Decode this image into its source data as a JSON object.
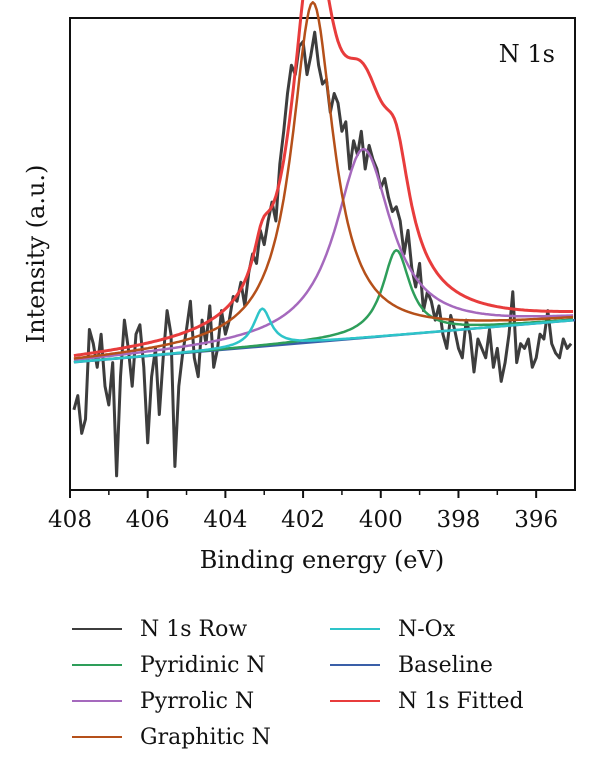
{
  "chart_data": {
    "type": "line",
    "annotation": "N 1s",
    "xlabel": "Binding energy (eV)",
    "ylabel": "Intensity (a.u.)",
    "xlim": [
      408,
      395
    ],
    "x_reversed": true,
    "ylim": [
      0,
      1
    ],
    "y_ticks_shown": false,
    "x_ticks": [
      {
        "value": 408,
        "label": "408"
      },
      {
        "value": 406,
        "label": "406"
      },
      {
        "value": 404,
        "label": "404"
      },
      {
        "value": 402,
        "label": "402"
      },
      {
        "value": 400,
        "label": "400"
      },
      {
        "value": 398,
        "label": "398"
      },
      {
        "value": 396,
        "label": "396"
      }
    ],
    "grid": false,
    "legend_placement": "below",
    "series": [
      {
        "name": "N 1s Row",
        "color": "#3d3d3d",
        "kind": "raw",
        "x": [
          407.9,
          407.8,
          407.7,
          407.6,
          407.5,
          407.4,
          407.3,
          407.2,
          407.1,
          407.0,
          406.9,
          406.8,
          406.7,
          406.6,
          406.5,
          406.4,
          406.3,
          406.2,
          406.1,
          406.0,
          405.9,
          405.8,
          405.7,
          405.6,
          405.5,
          405.4,
          405.3,
          405.2,
          405.1,
          405.0,
          404.9,
          404.8,
          404.7,
          404.6,
          404.5,
          404.4,
          404.3,
          404.2,
          404.1,
          404.0,
          403.9,
          403.8,
          403.7,
          403.6,
          403.5,
          403.4,
          403.3,
          403.2,
          403.1,
          403.0,
          402.9,
          402.8,
          402.7,
          402.6,
          402.5,
          402.4,
          402.3,
          402.2,
          402.1,
          402.0,
          401.9,
          401.8,
          401.7,
          401.6,
          401.5,
          401.4,
          401.3,
          401.2,
          401.1,
          401.0,
          400.9,
          400.8,
          400.7,
          400.6,
          400.5,
          400.4,
          400.3,
          400.2,
          400.1,
          400.0,
          399.9,
          399.8,
          399.7,
          399.6,
          399.5,
          399.4,
          399.3,
          399.2,
          399.1,
          399.0,
          398.9,
          398.8,
          398.7,
          398.6,
          398.5,
          398.4,
          398.3,
          398.2,
          398.1,
          398.0,
          397.9,
          397.8,
          397.7,
          397.6,
          397.5,
          397.4,
          397.3,
          397.2,
          397.1,
          397.0,
          396.9,
          396.8,
          396.7,
          396.6,
          396.5,
          396.4,
          396.3,
          396.2,
          396.1,
          396.0,
          395.9,
          395.8,
          395.7,
          395.6,
          395.5,
          395.4,
          395.3,
          395.2,
          395.1
        ],
        "y": [
          0.17,
          0.2,
          0.12,
          0.15,
          0.34,
          0.31,
          0.26,
          0.33,
          0.22,
          0.18,
          0.27,
          0.03,
          0.24,
          0.36,
          0.3,
          0.22,
          0.33,
          0.35,
          0.26,
          0.1,
          0.24,
          0.3,
          0.16,
          0.28,
          0.38,
          0.33,
          0.05,
          0.22,
          0.29,
          0.34,
          0.4,
          0.28,
          0.24,
          0.36,
          0.31,
          0.39,
          0.26,
          0.3,
          0.38,
          0.33,
          0.36,
          0.41,
          0.4,
          0.44,
          0.39,
          0.46,
          0.5,
          0.48,
          0.55,
          0.52,
          0.57,
          0.61,
          0.57,
          0.69,
          0.76,
          0.84,
          0.9,
          0.88,
          0.94,
          0.95,
          0.88,
          0.92,
          0.97,
          0.9,
          0.86,
          0.87,
          0.8,
          0.84,
          0.82,
          0.76,
          0.78,
          0.68,
          0.74,
          0.71,
          0.76,
          0.68,
          0.73,
          0.7,
          0.68,
          0.64,
          0.66,
          0.62,
          0.59,
          0.6,
          0.57,
          0.5,
          0.55,
          0.47,
          0.43,
          0.48,
          0.38,
          0.42,
          0.4,
          0.36,
          0.39,
          0.33,
          0.3,
          0.37,
          0.34,
          0.3,
          0.28,
          0.36,
          0.33,
          0.25,
          0.32,
          0.3,
          0.28,
          0.34,
          0.26,
          0.3,
          0.23,
          0.27,
          0.33,
          0.42,
          0.27,
          0.31,
          0.3,
          0.32,
          0.26,
          0.28,
          0.33,
          0.32,
          0.38,
          0.31,
          0.29,
          0.28,
          0.32,
          0.3,
          0.31
        ]
      },
      {
        "name": "Pyridinic N",
        "color": "#2e9e5a",
        "kind": "peak",
        "center": 399.6,
        "height": 0.18,
        "fwhm": 0.85
      },
      {
        "name": "Pyrrolic N",
        "color": "#a569bd",
        "kind": "peak",
        "center": 400.45,
        "height": 0.4,
        "fwhm": 1.75
      },
      {
        "name": "Graphitic N",
        "color": "#b5501a",
        "kind": "peak",
        "center": 401.75,
        "height": 0.72,
        "fwhm": 1.3
      },
      {
        "name": "N-Ox",
        "color": "#2ec4c9",
        "kind": "peak",
        "center": 403.05,
        "height": 0.08,
        "fwhm": 0.55
      },
      {
        "name": "Baseline",
        "color": "#3a5fa8",
        "kind": "baseline",
        "y_start": 0.27,
        "y_end": 0.36
      },
      {
        "name": "N 1s Fitted",
        "color": "#e83c3c",
        "kind": "fit"
      }
    ]
  },
  "legend": {
    "items": [
      {
        "label": "N 1s Row",
        "color": "#3d3d3d"
      },
      {
        "label": "Pyridinic N",
        "color": "#2e9e5a"
      },
      {
        "label": "Pyrrolic N",
        "color": "#a569bd"
      },
      {
        "label": "Graphitic N",
        "color": "#b5501a"
      },
      {
        "label": "N-Ox",
        "color": "#2ec4c9"
      },
      {
        "label": "Baseline",
        "color": "#3a5fa8"
      },
      {
        "label": "N 1s Fitted",
        "color": "#e83c3c"
      }
    ]
  }
}
